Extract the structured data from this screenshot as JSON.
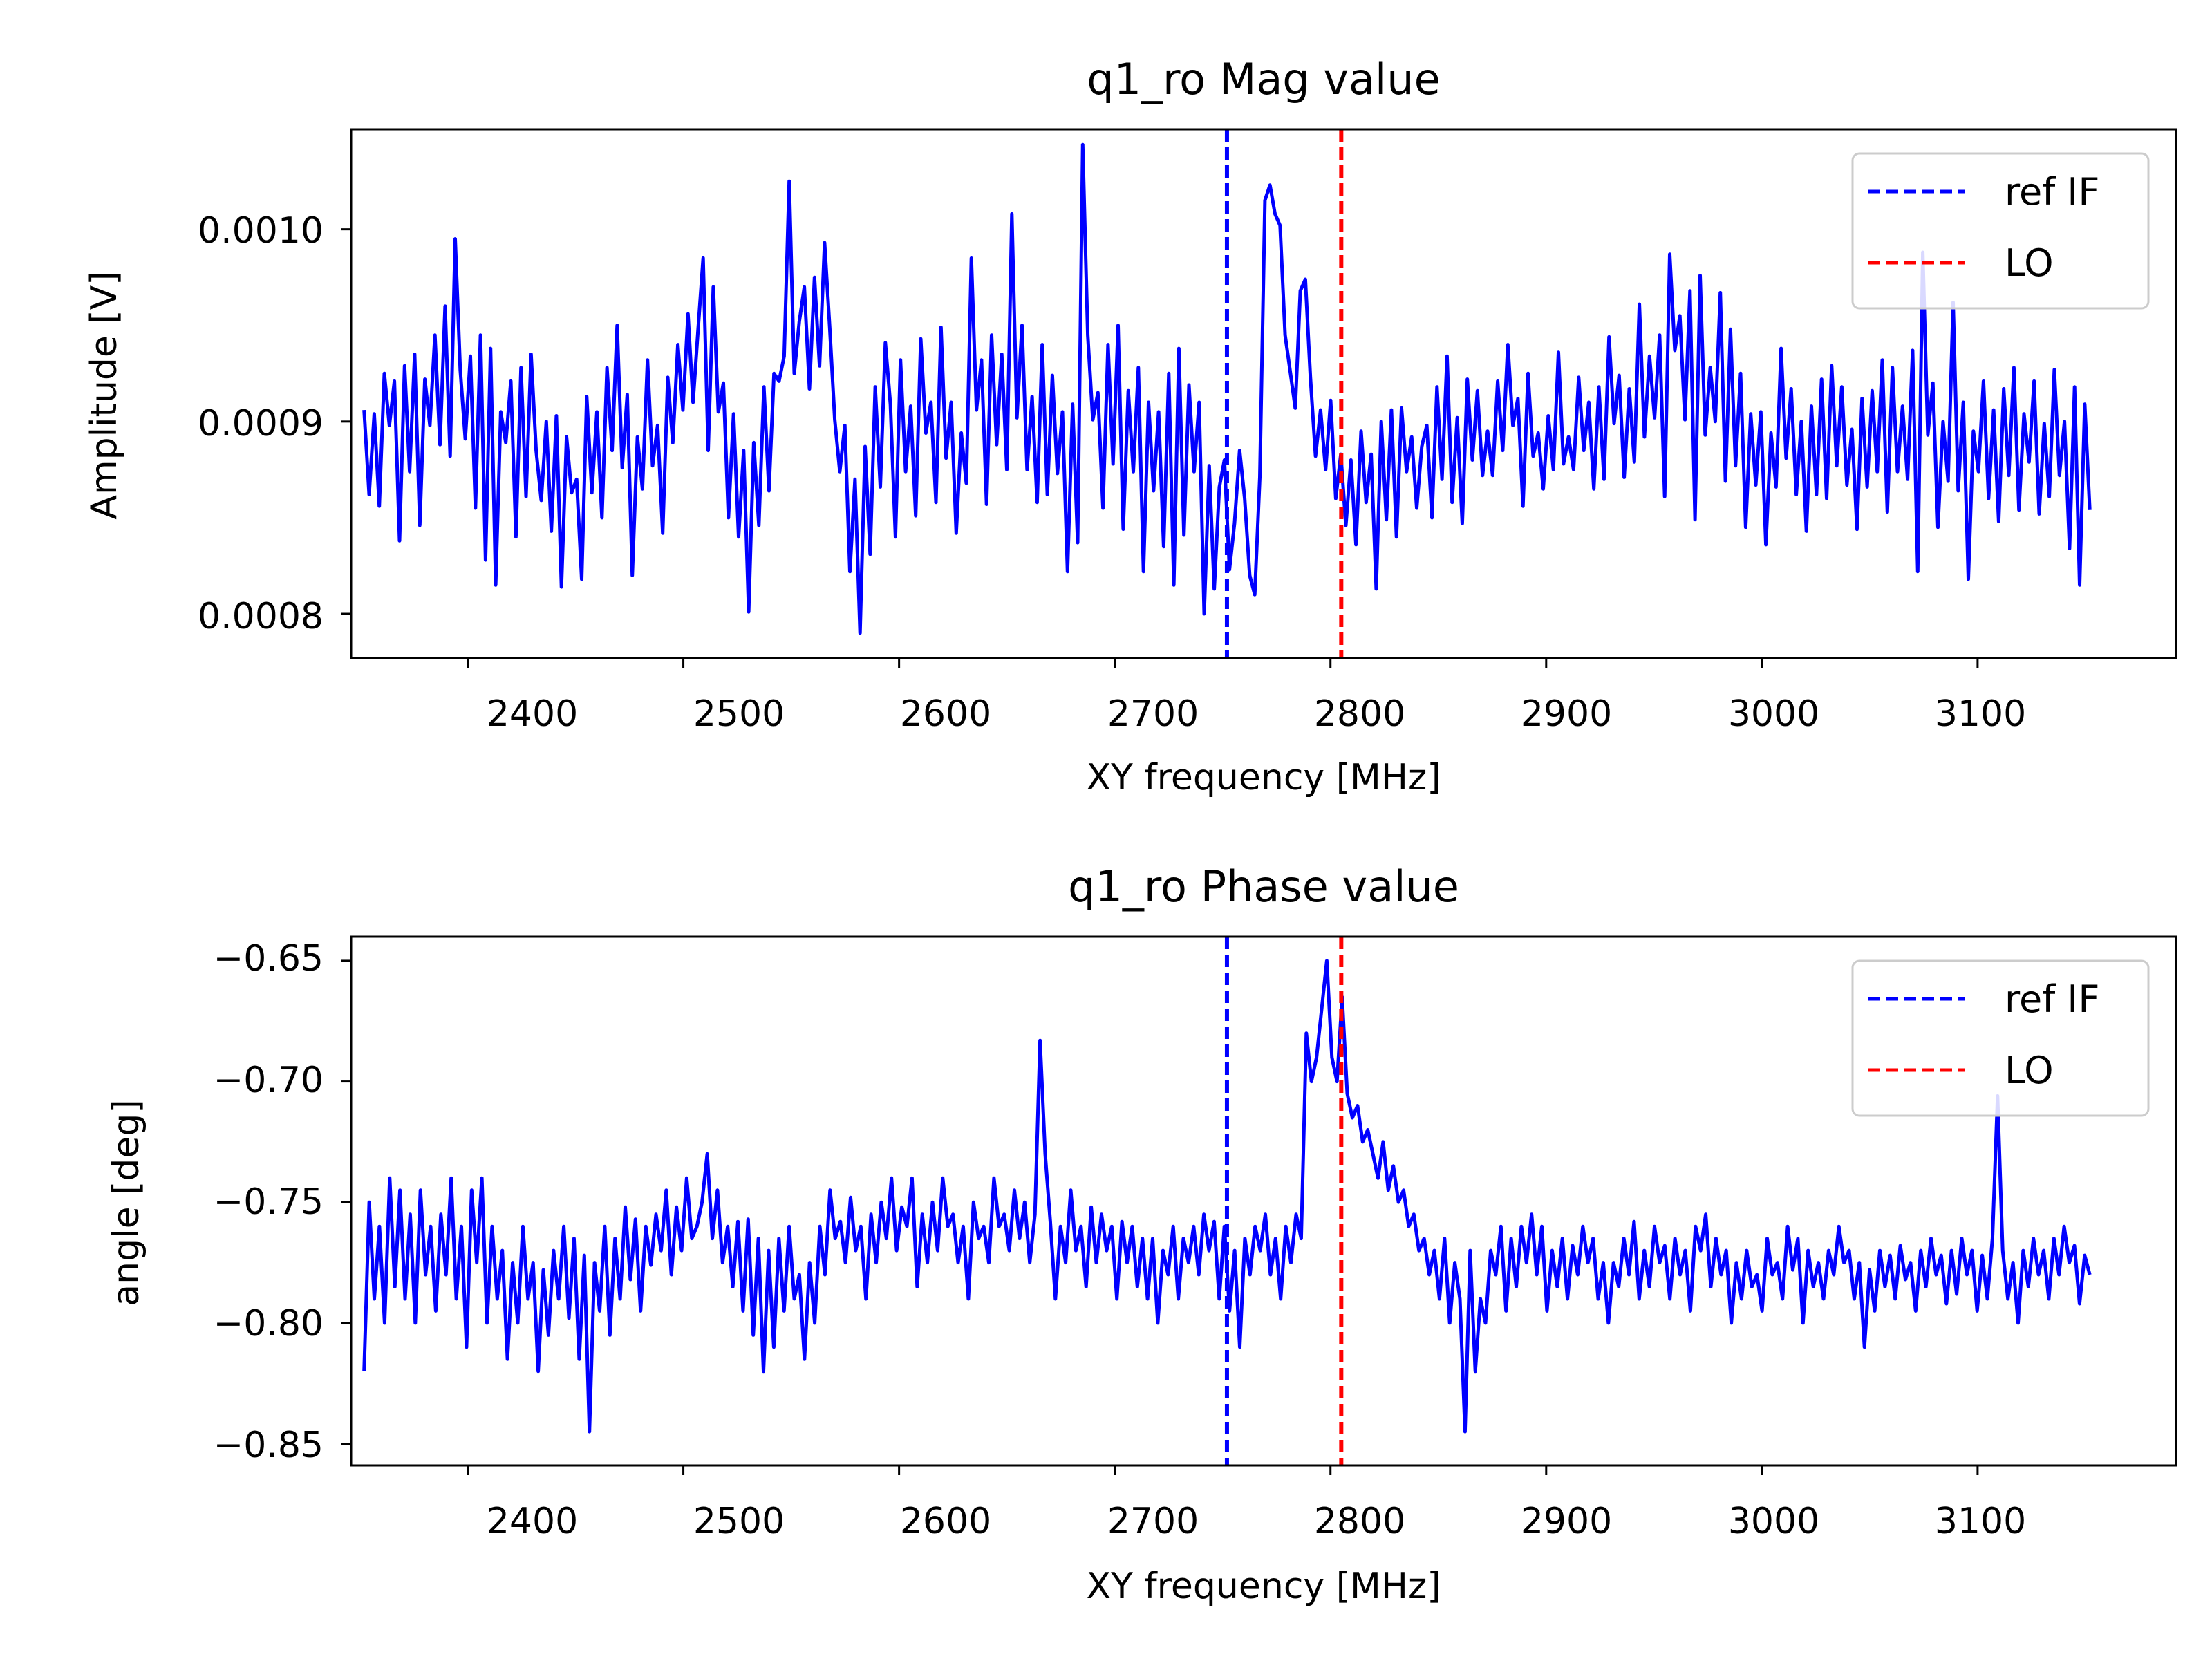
{
  "figure": {
    "background": "#ffffff"
  },
  "chart_data": [
    {
      "type": "line",
      "title": "q1_ro Mag value",
      "xlabel": "XY frequency [MHz]",
      "ylabel": "Amplitude [V]",
      "xlim": [
        2346,
        3192
      ],
      "ylim": [
        0.000777,
        0.001052
      ],
      "xticks": [
        2400,
        2500,
        2600,
        2700,
        2800,
        2900,
        3000,
        3100
      ],
      "xtick_labels": [
        "2400",
        "2500",
        "2600",
        "2700",
        "2800",
        "2900",
        "3000",
        "3100"
      ],
      "yticks": [
        0.0008,
        0.0009,
        0.001
      ],
      "ytick_labels": [
        "0.0008",
        "0.0009",
        "0.0010"
      ],
      "grid": false,
      "legend_position": "top-right",
      "x_range": [
        2352,
        3152
      ],
      "series": [
        {
          "name": "",
          "color": "#0000ff",
          "values": [
            0.000906,
            0.000862,
            0.000904,
            0.000856,
            0.000925,
            0.000898,
            0.000921,
            0.000838,
            0.000929,
            0.000874,
            0.000935,
            0.000846,
            0.000922,
            0.000898,
            0.000945,
            0.000888,
            0.00096,
            0.000882,
            0.000995,
            0.000927,
            0.000891,
            0.000934,
            0.000855,
            0.000945,
            0.000828,
            0.000938,
            0.000815,
            0.000905,
            0.000889,
            0.000921,
            0.00084,
            0.000928,
            0.000861,
            0.000935,
            0.000885,
            0.000859,
            0.0009,
            0.000843,
            0.000903,
            0.000814,
            0.000892,
            0.000863,
            0.00087,
            0.000818,
            0.000913,
            0.000863,
            0.000905,
            0.00085,
            0.000928,
            0.000885,
            0.00095,
            0.000876,
            0.000914,
            0.00082,
            0.000892,
            0.000865,
            0.000932,
            0.000877,
            0.000898,
            0.000842,
            0.000923,
            0.000889,
            0.00094,
            0.000906,
            0.000956,
            0.00091,
            0.000948,
            0.000985,
            0.000885,
            0.00097,
            0.000905,
            0.00092,
            0.00085,
            0.000904,
            0.00084,
            0.000885,
            0.000801,
            0.000889,
            0.000846,
            0.000918,
            0.000864,
            0.000925,
            0.000921,
            0.000934,
            0.001025,
            0.000925,
            0.000952,
            0.00097,
            0.000917,
            0.000975,
            0.000929,
            0.000993,
            0.000949,
            0.000901,
            0.000874,
            0.000898,
            0.000822,
            0.00087,
            0.00079,
            0.000887,
            0.000831,
            0.000918,
            0.000866,
            0.000941,
            0.000909,
            0.00084,
            0.000932,
            0.000874,
            0.000908,
            0.000851,
            0.000943,
            0.000894,
            0.00091,
            0.000858,
            0.000949,
            0.000881,
            0.00091,
            0.000842,
            0.000894,
            0.000868,
            0.000985,
            0.000906,
            0.000932,
            0.000857,
            0.000945,
            0.000888,
            0.000935,
            0.000875,
            0.001008,
            0.000902,
            0.00095,
            0.000875,
            0.000913,
            0.000858,
            0.00094,
            0.000862,
            0.000924,
            0.000873,
            0.000905,
            0.000822,
            0.000909,
            0.000837,
            0.001044,
            0.000945,
            0.000901,
            0.000915,
            0.000855,
            0.00094,
            0.000878,
            0.00095,
            0.000844,
            0.000916,
            0.000874,
            0.000928,
            0.000822,
            0.00091,
            0.000864,
            0.000905,
            0.000835,
            0.000925,
            0.000815,
            0.000938,
            0.000841,
            0.000919,
            0.000874,
            0.00091,
            0.0008,
            0.000877,
            0.000813,
            0.000866,
            0.00088,
            0.000823,
            0.000847,
            0.000885,
            0.00086,
            0.00082,
            0.00081,
            0.000871,
            0.001015,
            0.001023,
            0.001008,
            0.001002,
            0.000945,
            0.000926,
            0.000907,
            0.000968,
            0.000974,
            0.000923,
            0.000882,
            0.000906,
            0.000875,
            0.000911,
            0.00086,
            0.000883,
            0.000846,
            0.00088,
            0.000836,
            0.000895,
            0.000858,
            0.000883,
            0.000813,
            0.0009,
            0.000849,
            0.000906,
            0.00084,
            0.000907,
            0.000874,
            0.000892,
            0.000855,
            0.000887,
            0.000898,
            0.00085,
            0.000918,
            0.00087,
            0.000934,
            0.000858,
            0.000902,
            0.000847,
            0.000922,
            0.00088,
            0.000916,
            0.000872,
            0.000895,
            0.000872,
            0.000921,
            0.000885,
            0.00094,
            0.000898,
            0.000912,
            0.000856,
            0.000925,
            0.000882,
            0.000894,
            0.000865,
            0.000903,
            0.000875,
            0.000936,
            0.000878,
            0.000892,
            0.000875,
            0.000923,
            0.000885,
            0.00091,
            0.000865,
            0.000918,
            0.00087,
            0.000944,
            0.000899,
            0.000924,
            0.000871,
            0.000917,
            0.000879,
            0.000961,
            0.000892,
            0.000934,
            0.000902,
            0.000945,
            0.000861,
            0.000987,
            0.000937,
            0.000955,
            0.000901,
            0.000968,
            0.000849,
            0.000976,
            0.000893,
            0.000928,
            0.0009,
            0.000967,
            0.000869,
            0.000948,
            0.000877,
            0.000925,
            0.000845,
            0.000904,
            0.000867,
            0.000905,
            0.000836,
            0.000894,
            0.000866,
            0.000938,
            0.000881,
            0.000917,
            0.000862,
            0.0009,
            0.000843,
            0.000908,
            0.000862,
            0.000922,
            0.00086,
            0.000929,
            0.000877,
            0.000918,
            0.000867,
            0.000896,
            0.000844,
            0.000912,
            0.000866,
            0.000916,
            0.000874,
            0.000932,
            0.000853,
            0.000928,
            0.000874,
            0.000908,
            0.00087,
            0.000937,
            0.000822,
            0.000988,
            0.000893,
            0.00092,
            0.000845,
            0.0009,
            0.000869,
            0.000962,
            0.000864,
            0.00091,
            0.000818,
            0.000895,
            0.000874,
            0.000921,
            0.00086,
            0.000906,
            0.000848,
            0.000917,
            0.000872,
            0.000928,
            0.000854,
            0.000904,
            0.000879,
            0.000921,
            0.000852,
            0.000899,
            0.000861,
            0.000927,
            0.000872,
            0.0009,
            0.000834,
            0.000918,
            0.000815,
            0.000909,
            0.000854
          ]
        }
      ],
      "vlines": [
        {
          "name": "ref IF",
          "x": 2752,
          "color": "#0000ff",
          "style": "dashed"
        },
        {
          "name": "LO",
          "x": 2805,
          "color": "#ff0000",
          "style": "dashed"
        }
      ]
    },
    {
      "type": "line",
      "title": "q1_ro Phase value",
      "xlabel": "XY frequency [MHz]",
      "ylabel": "angle [deg]",
      "xlim": [
        2346,
        3192
      ],
      "ylim": [
        -0.859,
        -0.64
      ],
      "xticks": [
        2400,
        2500,
        2600,
        2700,
        2800,
        2900,
        3000,
        3100
      ],
      "xtick_labels": [
        "2400",
        "2500",
        "2600",
        "2700",
        "2800",
        "2900",
        "3000",
        "3100"
      ],
      "yticks": [
        -0.85,
        -0.8,
        -0.75,
        -0.7,
        -0.65
      ],
      "ytick_labels": [
        "−0.85",
        "−0.80",
        "−0.75",
        "−0.70",
        "−0.65"
      ],
      "grid": false,
      "legend_position": "top-right",
      "x_range": [
        2352,
        3152
      ],
      "series": [
        {
          "name": "",
          "color": "#0000ff",
          "values": [
            -0.82,
            -0.75,
            -0.79,
            -0.76,
            -0.8,
            -0.74,
            -0.785,
            -0.745,
            -0.79,
            -0.755,
            -0.8,
            -0.745,
            -0.78,
            -0.76,
            -0.795,
            -0.755,
            -0.78,
            -0.74,
            -0.79,
            -0.76,
            -0.81,
            -0.745,
            -0.775,
            -0.74,
            -0.8,
            -0.76,
            -0.79,
            -0.77,
            -0.815,
            -0.775,
            -0.8,
            -0.76,
            -0.79,
            -0.775,
            -0.82,
            -0.778,
            -0.805,
            -0.77,
            -0.79,
            -0.76,
            -0.798,
            -0.765,
            -0.815,
            -0.772,
            -0.845,
            -0.775,
            -0.795,
            -0.76,
            -0.805,
            -0.765,
            -0.79,
            -0.752,
            -0.782,
            -0.757,
            -0.795,
            -0.76,
            -0.776,
            -0.755,
            -0.77,
            -0.745,
            -0.78,
            -0.752,
            -0.77,
            -0.74,
            -0.765,
            -0.76,
            -0.75,
            -0.73,
            -0.765,
            -0.745,
            -0.775,
            -0.76,
            -0.785,
            -0.758,
            -0.795,
            -0.757,
            -0.805,
            -0.765,
            -0.82,
            -0.77,
            -0.81,
            -0.765,
            -0.795,
            -0.76,
            -0.79,
            -0.78,
            -0.815,
            -0.775,
            -0.8,
            -0.76,
            -0.78,
            -0.745,
            -0.765,
            -0.758,
            -0.775,
            -0.748,
            -0.77,
            -0.76,
            -0.79,
            -0.755,
            -0.775,
            -0.75,
            -0.765,
            -0.74,
            -0.77,
            -0.752,
            -0.76,
            -0.74,
            -0.785,
            -0.755,
            -0.775,
            -0.75,
            -0.77,
            -0.74,
            -0.76,
            -0.755,
            -0.775,
            -0.76,
            -0.79,
            -0.75,
            -0.765,
            -0.76,
            -0.775,
            -0.74,
            -0.76,
            -0.755,
            -0.77,
            -0.745,
            -0.765,
            -0.75,
            -0.775,
            -0.755,
            -0.683,
            -0.73,
            -0.758,
            -0.79,
            -0.76,
            -0.775,
            -0.745,
            -0.77,
            -0.76,
            -0.785,
            -0.752,
            -0.775,
            -0.755,
            -0.77,
            -0.76,
            -0.79,
            -0.758,
            -0.775,
            -0.76,
            -0.785,
            -0.765,
            -0.79,
            -0.765,
            -0.8,
            -0.77,
            -0.78,
            -0.76,
            -0.79,
            -0.765,
            -0.775,
            -0.76,
            -0.78,
            -0.755,
            -0.77,
            -0.758,
            -0.79,
            -0.76,
            -0.795,
            -0.77,
            -0.81,
            -0.765,
            -0.78,
            -0.76,
            -0.77,
            -0.755,
            -0.78,
            -0.765,
            -0.79,
            -0.76,
            -0.775,
            -0.755,
            -0.765,
            -0.68,
            -0.7,
            -0.69,
            -0.67,
            -0.65,
            -0.69,
            -0.7,
            -0.665,
            -0.705,
            -0.715,
            -0.71,
            -0.725,
            -0.72,
            -0.73,
            -0.74,
            -0.725,
            -0.745,
            -0.735,
            -0.75,
            -0.745,
            -0.76,
            -0.755,
            -0.77,
            -0.765,
            -0.78,
            -0.77,
            -0.79,
            -0.765,
            -0.8,
            -0.775,
            -0.79,
            -0.845,
            -0.77,
            -0.82,
            -0.79,
            -0.8,
            -0.77,
            -0.78,
            -0.76,
            -0.795,
            -0.765,
            -0.785,
            -0.76,
            -0.775,
            -0.755,
            -0.78,
            -0.76,
            -0.795,
            -0.77,
            -0.785,
            -0.765,
            -0.79,
            -0.768,
            -0.78,
            -0.76,
            -0.775,
            -0.765,
            -0.79,
            -0.775,
            -0.8,
            -0.775,
            -0.785,
            -0.765,
            -0.78,
            -0.758,
            -0.79,
            -0.77,
            -0.785,
            -0.76,
            -0.775,
            -0.768,
            -0.79,
            -0.765,
            -0.78,
            -0.77,
            -0.795,
            -0.76,
            -0.77,
            -0.755,
            -0.785,
            -0.765,
            -0.78,
            -0.77,
            -0.8,
            -0.775,
            -0.79,
            -0.77,
            -0.785,
            -0.78,
            -0.795,
            -0.765,
            -0.78,
            -0.775,
            -0.79,
            -0.76,
            -0.778,
            -0.765,
            -0.8,
            -0.77,
            -0.785,
            -0.775,
            -0.79,
            -0.77,
            -0.78,
            -0.76,
            -0.775,
            -0.77,
            -0.79,
            -0.775,
            -0.81,
            -0.778,
            -0.795,
            -0.77,
            -0.785,
            -0.772,
            -0.79,
            -0.768,
            -0.782,
            -0.775,
            -0.795,
            -0.77,
            -0.785,
            -0.765,
            -0.78,
            -0.772,
            -0.792,
            -0.77,
            -0.788,
            -0.765,
            -0.78,
            -0.77,
            -0.795,
            -0.772,
            -0.79,
            -0.765,
            -0.706,
            -0.77,
            -0.79,
            -0.775,
            -0.8,
            -0.77,
            -0.785,
            -0.765,
            -0.78,
            -0.77,
            -0.79,
            -0.765,
            -0.78,
            -0.76,
            -0.775,
            -0.768,
            -0.792,
            -0.772,
            -0.78
          ]
        }
      ],
      "vlines": [
        {
          "name": "ref IF",
          "x": 2752,
          "color": "#0000ff",
          "style": "dashed"
        },
        {
          "name": "LO",
          "x": 2805,
          "color": "#ff0000",
          "style": "dashed"
        }
      ]
    }
  ]
}
